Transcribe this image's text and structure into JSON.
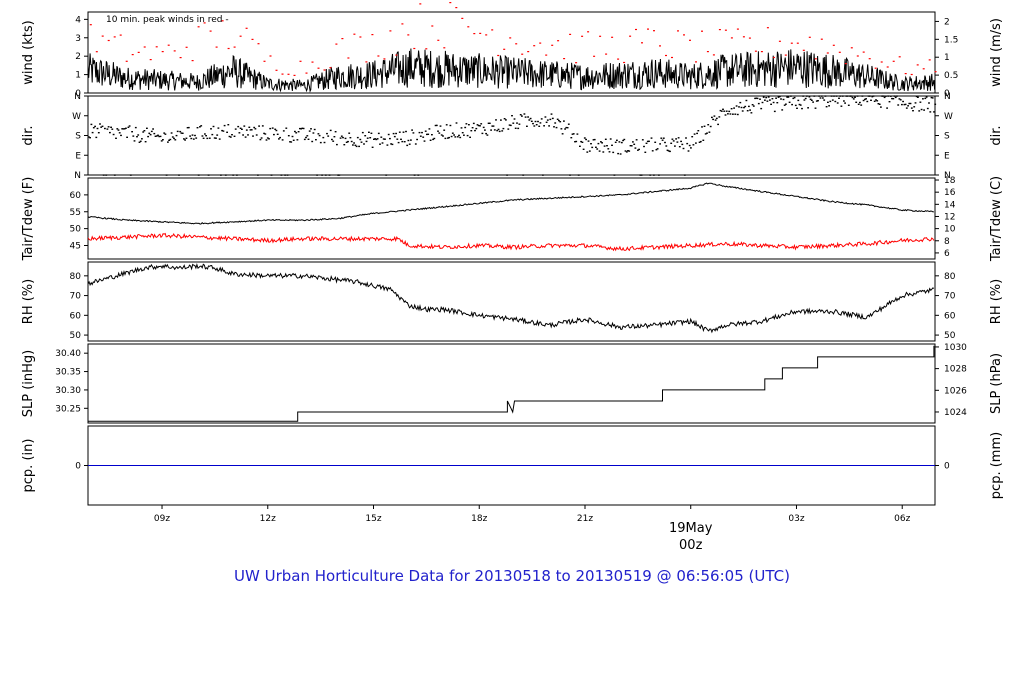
{
  "footer": {
    "title": "UW Urban Horticulture Data for 20130518  to  20130519 @ 06:56:05  (UTC)"
  },
  "colors": {
    "series_red": "#ff0000",
    "series_black": "#000000",
    "zero_line": "#0000cc",
    "title": "#2222cc"
  },
  "x_axis": {
    "ticks": [
      "09z",
      "12z",
      "15z",
      "18z",
      "21z",
      "03z",
      "06z"
    ],
    "tick_hours": [
      9,
      12,
      15,
      18,
      21,
      27,
      30
    ],
    "day_label_line1": "19May",
    "day_label_line2": "00z",
    "day_label_hour": 24,
    "xlim_hours": [
      6.9,
      30.93
    ]
  },
  "chart_data": [
    {
      "type": "line",
      "panel": "wind",
      "annotation": "10 min. peak winds in red -",
      "ylabel_left": "wind (kts)",
      "ylabel_right": "wind (m/s)",
      "ylim": [
        0,
        4.4
      ],
      "left_ticks": [
        "0",
        "1",
        "2",
        "3",
        "4"
      ],
      "left_tick_values": [
        0,
        1,
        2,
        3,
        4
      ],
      "right_ticks": [
        "0",
        "0.5",
        "1",
        "1.5",
        "2"
      ],
      "right_tick_values_kts": [
        0,
        0.972,
        1.944,
        2.916,
        3.888
      ],
      "series": [
        {
          "name": "wind",
          "x": [
            7,
            8,
            9,
            10,
            11,
            12,
            13,
            14,
            15,
            16,
            17,
            18,
            19,
            20,
            21,
            22,
            23,
            24,
            25,
            26,
            27,
            28,
            29,
            30,
            30.9
          ],
          "values": [
            1.2,
            0.8,
            0.7,
            0.6,
            1.2,
            0.5,
            0.4,
            0.9,
            1.0,
            1.4,
            1.3,
            1.2,
            1.1,
            1.0,
            0.9,
            1.0,
            1.1,
            0.9,
            1.2,
            1.3,
            1.4,
            1.2,
            0.9,
            0.5,
            0.6
          ]
        },
        {
          "name": "peak",
          "x": [
            7,
            8,
            9,
            10,
            11,
            12,
            13,
            14,
            15,
            16,
            17,
            18,
            19,
            20,
            21,
            22,
            23,
            24,
            25,
            26,
            27,
            28,
            29,
            30,
            30.9
          ],
          "values": [
            3.0,
            2.4,
            2.2,
            3.0,
            3.5,
            1.8,
            1.5,
            2.5,
            2.8,
            3.8,
            4.0,
            3.6,
            3.2,
            2.8,
            2.6,
            2.7,
            2.9,
            2.6,
            2.7,
            2.8,
            3.0,
            2.6,
            2.2,
            1.5,
            1.4
          ]
        }
      ]
    },
    {
      "type": "scatter",
      "panel": "dir",
      "ylabel_left": "dir.",
      "ylabel_right": "dir.",
      "ylim": [
        0,
        360
      ],
      "left_ticks": [
        "N",
        "E",
        "S",
        "W",
        "N"
      ],
      "left_tick_values": [
        0,
        90,
        180,
        270,
        360
      ],
      "series": [
        {
          "name": "dir",
          "x": [
            7,
            8,
            9,
            10,
            11,
            12,
            13,
            14,
            15,
            16,
            17,
            18,
            19,
            20,
            21,
            22,
            23,
            24,
            25,
            26,
            27,
            28,
            29,
            30,
            30.9
          ],
          "values": [
            200,
            190,
            170,
            190,
            200,
            190,
            180,
            170,
            160,
            170,
            200,
            210,
            240,
            260,
            140,
            130,
            135,
            140,
            300,
            320,
            330,
            345,
            350,
            330,
            320
          ]
        }
      ]
    },
    {
      "type": "line",
      "panel": "temperature",
      "ylabel_left": "Tair/Tdew (F)",
      "ylabel_right": "Tair/Tdew (C)",
      "ylim": [
        41,
        65
      ],
      "left_ticks": [
        "45",
        "50",
        "55",
        "60"
      ],
      "left_tick_values": [
        45,
        50,
        55,
        60
      ],
      "right_ticks": [
        "6",
        "8",
        "10",
        "12",
        "14",
        "16",
        "18"
      ],
      "right_tick_values_f": [
        42.8,
        46.4,
        50,
        53.6,
        57.2,
        60.8,
        64.4
      ],
      "series": [
        {
          "name": "Tair",
          "color": "#000000",
          "x": [
            6.9,
            8,
            9,
            10,
            11,
            12,
            13,
            14,
            15,
            16,
            17,
            18,
            19,
            20,
            21,
            22,
            23,
            24,
            24.5,
            25,
            26,
            27,
            28,
            29,
            30,
            30.9
          ],
          "values": [
            53.5,
            52.5,
            52.0,
            51.5,
            52.0,
            52.5,
            52.5,
            53.0,
            54.5,
            55.5,
            56.5,
            57.5,
            58.5,
            59.0,
            59.5,
            60.0,
            61.0,
            62.0,
            63.5,
            62.5,
            61.0,
            59.5,
            58.0,
            57.0,
            55.5,
            55.0
          ]
        },
        {
          "name": "Tdew",
          "color": "#ff0000",
          "x": [
            6.9,
            8,
            9,
            10,
            11,
            12,
            13,
            14,
            15,
            15.7,
            16,
            17,
            18,
            19,
            20,
            21,
            22,
            23,
            24,
            25,
            26,
            27,
            28,
            29,
            30,
            30.9
          ],
          "values": [
            47.0,
            47.5,
            48.0,
            47.5,
            47.0,
            46.5,
            47.0,
            47.0,
            47.0,
            47.0,
            45.0,
            44.5,
            45.0,
            44.5,
            45.0,
            45.0,
            44.0,
            44.5,
            45.0,
            45.5,
            45.0,
            44.5,
            45.0,
            45.5,
            46.5,
            47.0
          ]
        }
      ]
    },
    {
      "type": "line",
      "panel": "rh",
      "ylabel_left": "RH (%)",
      "ylabel_right": "RH (%)",
      "ylim": [
        47,
        87
      ],
      "left_ticks": [
        "50",
        "60",
        "70",
        "80"
      ],
      "left_tick_values": [
        50,
        60,
        70,
        80
      ],
      "series": [
        {
          "name": "RH",
          "x": [
            6.9,
            7.5,
            8.5,
            9,
            9.5,
            10,
            10.5,
            11,
            12,
            13,
            14,
            14.5,
            15,
            15.5,
            16,
            16.5,
            17,
            18,
            19,
            20,
            21,
            22,
            23,
            24,
            24.5,
            25,
            26,
            27,
            28,
            29,
            30,
            30.9
          ],
          "values": [
            76,
            79,
            84,
            85,
            84,
            85,
            84,
            81,
            80,
            80,
            78,
            77,
            75,
            73,
            65,
            63,
            63,
            60,
            58,
            55,
            58,
            54,
            55,
            57,
            52,
            55,
            57,
            62,
            62,
            59,
            70,
            73
          ]
        }
      ]
    },
    {
      "type": "line",
      "panel": "slp",
      "ylabel_left": "SLP (inHg)",
      "ylabel_right": "SLP (hPa)",
      "ylim": [
        30.21,
        30.425
      ],
      "left_ticks": [
        "30.25",
        "30.30",
        "30.35",
        "30.40"
      ],
      "left_tick_values": [
        30.25,
        30.3,
        30.35,
        30.4
      ],
      "right_ticks": [
        "1024",
        "1026",
        "1028",
        "1030"
      ],
      "right_tick_values_inhg": [
        30.24,
        30.299,
        30.358,
        30.417
      ],
      "series": [
        {
          "name": "SLP",
          "x": [
            6.9,
            12.85,
            12.85,
            18.8,
            18.8,
            18.9,
            18.95,
            19.0,
            19.05,
            23.2,
            23.2,
            26.1,
            26.1,
            26.6,
            26.6,
            27.6,
            27.6,
            30.9,
            30.9
          ],
          "values": [
            30.215,
            30.215,
            30.24,
            30.24,
            30.27,
            30.25,
            30.24,
            30.27,
            30.27,
            30.27,
            30.3,
            30.3,
            30.33,
            30.33,
            30.36,
            30.36,
            30.39,
            30.39,
            30.42
          ]
        }
      ]
    },
    {
      "type": "line",
      "panel": "precip",
      "ylabel_left": "pcp. (in)",
      "ylabel_right": "pcp. (mm)",
      "ylim": [
        -1,
        1
      ],
      "left_ticks": [
        "0"
      ],
      "right_ticks": [
        "0"
      ],
      "series": [
        {
          "name": "pcp",
          "x": [
            6.9,
            30.93
          ],
          "values": [
            0,
            0
          ]
        }
      ]
    }
  ]
}
